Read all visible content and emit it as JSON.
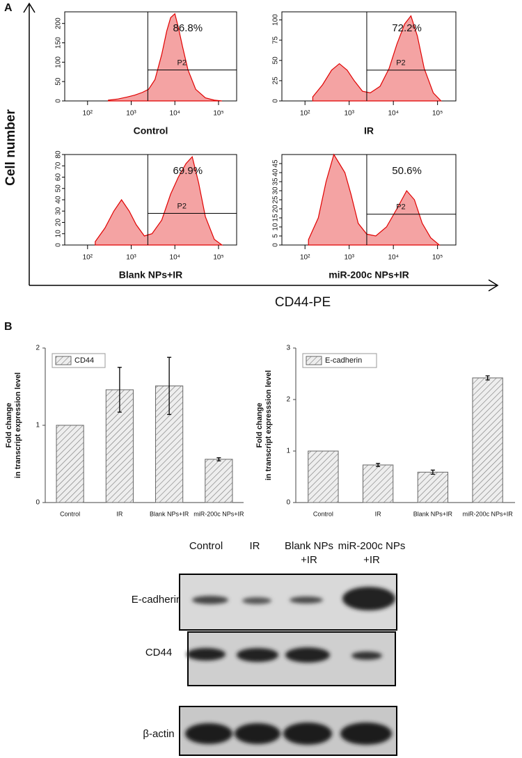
{
  "panel_labels": [
    "A",
    "B"
  ],
  "flow_axes": {
    "y_title": "Cell number",
    "x_title": "CD44-PE"
  },
  "chart_data": [
    {
      "type": "area",
      "title": "Control",
      "annotation": "86.8%",
      "gate_label": "P2",
      "gate": [
        2400,
        80
      ],
      "x": [
        300,
        500,
        800,
        1200,
        1800,
        2500,
        3500,
        5000,
        6500,
        8000,
        10000,
        12000,
        15000,
        20000,
        30000,
        50000,
        80000,
        120000
      ],
      "values": [
        2,
        5,
        10,
        15,
        22,
        30,
        55,
        120,
        180,
        215,
        225,
        190,
        140,
        80,
        30,
        8,
        2,
        0
      ],
      "color": "#e00000",
      "fill": "#f4a3a3",
      "xscale": "log",
      "xlim": [
        30,
        260000
      ],
      "xticks": [
        {
          "value": 100,
          "label": "10²"
        },
        {
          "value": 1000,
          "label": "10³"
        },
        {
          "value": 10000,
          "label": "10⁴"
        },
        {
          "value": 100000,
          "label": "10⁵"
        }
      ],
      "ylim": [
        0,
        230
      ],
      "yticks": [
        0,
        50,
        100,
        150,
        200
      ]
    },
    {
      "type": "area",
      "title": "IR",
      "annotation": "72.2%",
      "gate_label": "P2",
      "gate": [
        2500,
        38
      ],
      "x": [
        150,
        250,
        400,
        600,
        900,
        1300,
        2000,
        3000,
        5000,
        8000,
        12000,
        18000,
        25000,
        35000,
        50000,
        80000,
        120000
      ],
      "values": [
        5,
        20,
        38,
        46,
        38,
        25,
        12,
        10,
        18,
        40,
        70,
        95,
        105,
        80,
        40,
        10,
        0
      ],
      "color": "#e00000",
      "fill": "#f4a3a3",
      "xscale": "log",
      "xlim": [
        30,
        260000
      ],
      "xticks": [
        {
          "value": 100,
          "label": "10²"
        },
        {
          "value": 1000,
          "label": "10³"
        },
        {
          "value": 10000,
          "label": "10⁴"
        },
        {
          "value": 100000,
          "label": "10⁵"
        }
      ],
      "ylim": [
        0,
        110
      ],
      "yticks": [
        0,
        25,
        50,
        75,
        100
      ]
    },
    {
      "type": "area",
      "title": "Blank NPs+IR",
      "annotation": "69.9%",
      "gate_label": "P2",
      "gate": [
        2400,
        28
      ],
      "x": [
        150,
        250,
        400,
        600,
        900,
        1300,
        2000,
        3000,
        5000,
        8000,
        12000,
        18000,
        25000,
        35000,
        50000,
        80000,
        120000
      ],
      "values": [
        3,
        15,
        30,
        40,
        30,
        18,
        8,
        10,
        22,
        45,
        60,
        72,
        78,
        55,
        25,
        5,
        0
      ],
      "color": "#e00000",
      "fill": "#f4a3a3",
      "xscale": "log",
      "xlim": [
        30,
        260000
      ],
      "xticks": [
        {
          "value": 100,
          "label": "10²"
        },
        {
          "value": 1000,
          "label": "10³"
        },
        {
          "value": 10000,
          "label": "10⁴"
        },
        {
          "value": 100000,
          "label": "10⁵"
        }
      ],
      "ylim": [
        0,
        80
      ],
      "yticks": [
        0,
        10,
        20,
        30,
        40,
        50,
        60,
        70,
        80
      ]
    },
    {
      "type": "area",
      "title": "miR-200c NPs+IR",
      "annotation": "50.6%",
      "gate_label": "P2",
      "gate": [
        2500,
        17
      ],
      "x": [
        120,
        200,
        300,
        450,
        600,
        800,
        1100,
        1600,
        2500,
        4000,
        7000,
        12000,
        20000,
        30000,
        45000,
        70000,
        110000
      ],
      "values": [
        3,
        15,
        35,
        50,
        45,
        40,
        28,
        12,
        6,
        5,
        10,
        20,
        30,
        25,
        12,
        4,
        0
      ],
      "color": "#e00000",
      "fill": "#f4a3a3",
      "xscale": "log",
      "xlim": [
        30,
        260000
      ],
      "xticks": [
        {
          "value": 100,
          "label": "10²"
        },
        {
          "value": 1000,
          "label": "10³"
        },
        {
          "value": 10000,
          "label": "10⁴"
        },
        {
          "value": 100000,
          "label": "10⁵"
        }
      ],
      "ylim": [
        0,
        50
      ],
      "yticks": [
        0,
        5,
        10,
        15,
        20,
        25,
        30,
        35,
        40,
        45
      ]
    },
    {
      "type": "bar",
      "ylabel": [
        "Fold change",
        "in transcript expression level"
      ],
      "categories": [
        "Control",
        "IR",
        "Blank NPs+IR",
        "miR-200c NPs+IR"
      ],
      "series": [
        {
          "name": "CD44",
          "values": [
            1.0,
            1.46,
            1.51,
            0.56
          ],
          "errors": [
            null,
            0.29,
            0.37,
            0.02
          ]
        }
      ],
      "ylim": [
        0,
        2
      ],
      "yticks": [
        0,
        1,
        2
      ]
    },
    {
      "type": "bar",
      "ylabel": [
        "Fold change",
        "in transcript expresssion level"
      ],
      "categories": [
        "Control",
        "IR",
        "Blank NPs+IR",
        "miR-200c NPs+IR"
      ],
      "series": [
        {
          "name": "E-cadherin",
          "values": [
            1.0,
            0.73,
            0.59,
            2.42
          ],
          "errors": [
            null,
            0.03,
            0.04,
            0.04
          ]
        }
      ],
      "ylim": [
        0,
        3
      ],
      "yticks": [
        0,
        1,
        2,
        3
      ]
    }
  ],
  "blot": {
    "columns": [
      [
        "Control"
      ],
      [
        "IR"
      ],
      [
        "Blank NPs",
        "+IR"
      ],
      [
        "miR-200c NPs",
        "+IR"
      ]
    ],
    "rows": [
      "E-cadherin",
      "CD44",
      "β-actin"
    ]
  }
}
